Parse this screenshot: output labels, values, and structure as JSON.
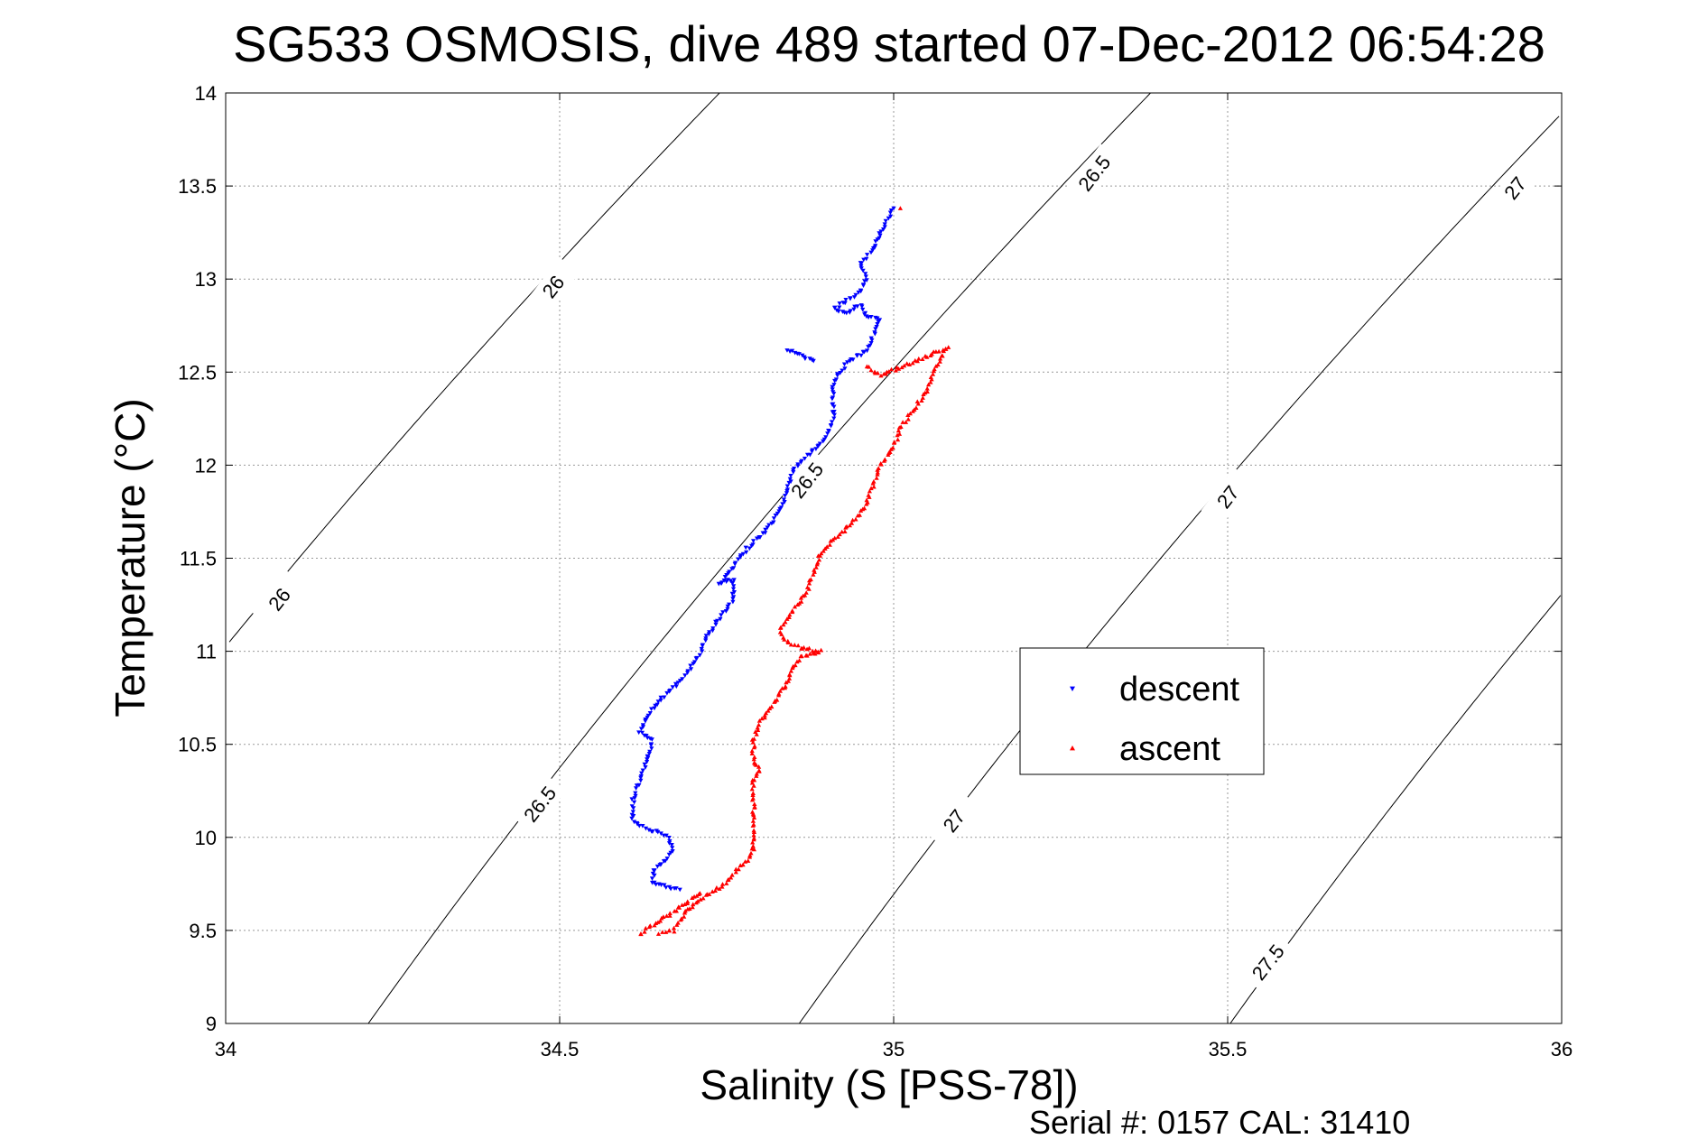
{
  "chart_data": {
    "type": "scatter",
    "title": "SG533 OSMOSIS, dive 489 started 07-Dec-2012 06:54:28",
    "xlabel": "Salinity (S [PSS-78])",
    "ylabel": "Temperature (°C)",
    "xlim": [
      34,
      36
    ],
    "ylim": [
      9,
      14
    ],
    "xticks": [
      "34",
      "34.5",
      "35",
      "35.5",
      "36"
    ],
    "yticks": [
      "9",
      "9.5",
      "10",
      "10.5",
      "11",
      "11.5",
      "12",
      "12.5",
      "13",
      "13.5",
      "14"
    ],
    "grid": true,
    "legend_position": "center-right",
    "footer": "Serial #: 0157  CAL: 31410",
    "density_contours": [
      {
        "level": "26",
        "labels": [
          {
            "text": "26",
            "s": 34.49,
            "t": 12.96
          },
          {
            "text": "26",
            "s": 34.08,
            "t": 11.28
          }
        ]
      },
      {
        "level": "26.5",
        "labels": [
          {
            "text": "26.5",
            "s": 35.3,
            "t": 13.57
          },
          {
            "text": "26.5",
            "s": 34.87,
            "t": 11.92
          },
          {
            "text": "26.5",
            "s": 34.47,
            "t": 10.18
          }
        ]
      },
      {
        "level": "27",
        "labels": [
          {
            "text": "27",
            "s": 35.93,
            "t": 13.49
          },
          {
            "text": "27",
            "s": 35.5,
            "t": 11.83
          },
          {
            "text": "27",
            "s": 35.09,
            "t": 10.09
          }
        ]
      },
      {
        "level": "27.5",
        "labels": [
          {
            "text": "27.5",
            "s": 35.56,
            "t": 9.33
          }
        ]
      }
    ],
    "series": [
      {
        "name": "descent",
        "color": "#0000ff",
        "marker": "triangle-down",
        "points": [
          [
            34.68,
            9.72
          ],
          [
            34.64,
            9.75
          ],
          [
            34.64,
            9.82
          ],
          [
            34.66,
            9.88
          ],
          [
            34.67,
            9.94
          ],
          [
            34.66,
            10.01
          ],
          [
            34.62,
            10.06
          ],
          [
            34.61,
            10.1
          ],
          [
            34.61,
            10.2
          ],
          [
            34.62,
            10.3
          ],
          [
            34.63,
            10.4
          ],
          [
            34.64,
            10.52
          ],
          [
            34.62,
            10.57
          ],
          [
            34.63,
            10.65
          ],
          [
            34.65,
            10.74
          ],
          [
            34.67,
            10.8
          ],
          [
            34.69,
            10.88
          ],
          [
            34.71,
            10.98
          ],
          [
            34.72,
            11.08
          ],
          [
            34.74,
            11.18
          ],
          [
            34.76,
            11.28
          ],
          [
            34.76,
            11.39
          ],
          [
            34.74,
            11.36
          ],
          [
            34.76,
            11.45
          ],
          [
            34.78,
            11.55
          ],
          [
            34.81,
            11.65
          ],
          [
            34.83,
            11.75
          ],
          [
            34.84,
            11.86
          ],
          [
            34.85,
            11.97
          ],
          [
            34.87,
            12.05
          ],
          [
            34.9,
            12.15
          ],
          [
            34.91,
            12.25
          ],
          [
            34.91,
            12.35
          ],
          [
            34.91,
            12.45
          ],
          [
            34.93,
            12.55
          ],
          [
            34.96,
            12.62
          ],
          [
            34.97,
            12.7
          ],
          [
            34.98,
            12.78
          ],
          [
            34.96,
            12.8
          ],
          [
            34.95,
            12.86
          ],
          [
            34.93,
            12.82
          ],
          [
            34.91,
            12.84
          ],
          [
            34.95,
            12.93
          ],
          [
            34.96,
            13.0
          ],
          [
            34.95,
            13.08
          ],
          [
            34.97,
            13.16
          ],
          [
            34.98,
            13.25
          ],
          [
            34.99,
            13.31
          ],
          [
            35.0,
            13.38
          ],
          [
            34.84,
            12.62
          ],
          [
            34.88,
            12.56
          ]
        ]
      },
      {
        "name": "ascent",
        "color": "#ff0000",
        "marker": "triangle-up",
        "points": [
          [
            34.65,
            9.48
          ],
          [
            34.67,
            9.5
          ],
          [
            34.69,
            9.6
          ],
          [
            34.71,
            9.67
          ],
          [
            34.74,
            9.73
          ],
          [
            34.76,
            9.8
          ],
          [
            34.78,
            9.88
          ],
          [
            34.79,
            9.93
          ],
          [
            34.79,
            10.0
          ],
          [
            34.79,
            10.1
          ],
          [
            34.79,
            10.2
          ],
          [
            34.79,
            10.3
          ],
          [
            34.8,
            10.36
          ],
          [
            34.79,
            10.42
          ],
          [
            34.79,
            10.52
          ],
          [
            34.8,
            10.62
          ],
          [
            34.82,
            10.72
          ],
          [
            34.84,
            10.83
          ],
          [
            34.85,
            10.92
          ],
          [
            34.86,
            10.97
          ],
          [
            34.89,
            11.0
          ],
          [
            34.86,
            11.02
          ],
          [
            34.84,
            11.05
          ],
          [
            34.83,
            11.12
          ],
          [
            34.85,
            11.22
          ],
          [
            34.87,
            11.32
          ],
          [
            34.88,
            11.42
          ],
          [
            34.89,
            11.52
          ],
          [
            34.91,
            11.6
          ],
          [
            34.94,
            11.7
          ],
          [
            34.96,
            11.8
          ],
          [
            34.97,
            11.9
          ],
          [
            34.98,
            12.0
          ],
          [
            35.0,
            12.1
          ],
          [
            35.01,
            12.2
          ],
          [
            35.03,
            12.3
          ],
          [
            35.05,
            12.4
          ],
          [
            35.06,
            12.5
          ],
          [
            35.07,
            12.57
          ],
          [
            35.08,
            12.63
          ],
          [
            34.98,
            12.48
          ],
          [
            34.96,
            12.53
          ],
          [
            35.01,
            13.38
          ],
          [
            34.62,
            9.48
          ],
          [
            34.71,
            9.7
          ]
        ]
      }
    ]
  }
}
